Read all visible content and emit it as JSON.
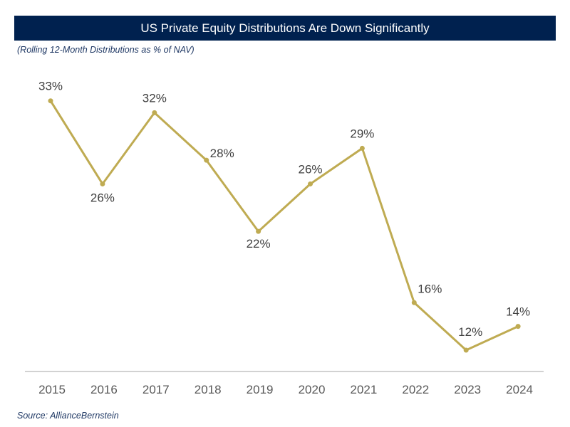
{
  "chart_data": {
    "type": "line",
    "title": "US Private Equity Distributions Are Down Significantly",
    "subtitle": "(Rolling 12-Month Distributions as % of NAV)",
    "source": "Source: AllianceBernstein",
    "xlabel": "",
    "ylabel": "",
    "categories": [
      "2015",
      "2016",
      "2017",
      "2018",
      "2019",
      "2020",
      "2021",
      "2022",
      "2023",
      "2024"
    ],
    "series": [
      {
        "name": "Distributions % of NAV",
        "values": [
          33,
          26,
          32,
          28,
          22,
          26,
          29,
          16,
          12,
          14
        ],
        "labels": [
          "33%",
          "26%",
          "32%",
          "28%",
          "22%",
          "26%",
          "29%",
          "16%",
          "12%",
          "14%"
        ]
      }
    ],
    "ylim": [
      10.2,
      35.5
    ],
    "grid": false,
    "legend": "none",
    "colors": {
      "line": "#bfab52",
      "banner": "#00214f",
      "text": "#1f3864"
    }
  }
}
